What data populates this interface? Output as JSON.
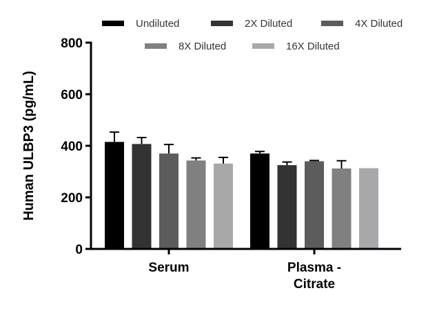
{
  "chart_data": {
    "type": "bar",
    "categories": [
      "Serum",
      "Plasma -\nCitrate"
    ],
    "ylabel": "Human ULBP3 (pg/mL)",
    "xlabel": "",
    "ylim": [
      0,
      800
    ],
    "yticks": [
      0,
      200,
      400,
      600,
      800
    ],
    "grid": false,
    "legend_position": "top",
    "error_bars": true,
    "series": [
      {
        "name": "Undiluted",
        "color": "#000000",
        "values": [
          415,
          370
        ],
        "errors": [
          38,
          8
        ]
      },
      {
        "name": "2X Diluted",
        "color": "#333333",
        "values": [
          407,
          325
        ],
        "errors": [
          25,
          12
        ]
      },
      {
        "name": "4X Diluted",
        "color": "#5c5c5c",
        "values": [
          370,
          340
        ],
        "errors": [
          35,
          3
        ]
      },
      {
        "name": "8X Diluted",
        "color": "#808080",
        "values": [
          343,
          312
        ],
        "errors": [
          10,
          30
        ]
      },
      {
        "name": "16X Diluted",
        "color": "#a8a8ab",
        "values": [
          331,
          313
        ],
        "errors": [
          24,
          0
        ]
      }
    ]
  }
}
